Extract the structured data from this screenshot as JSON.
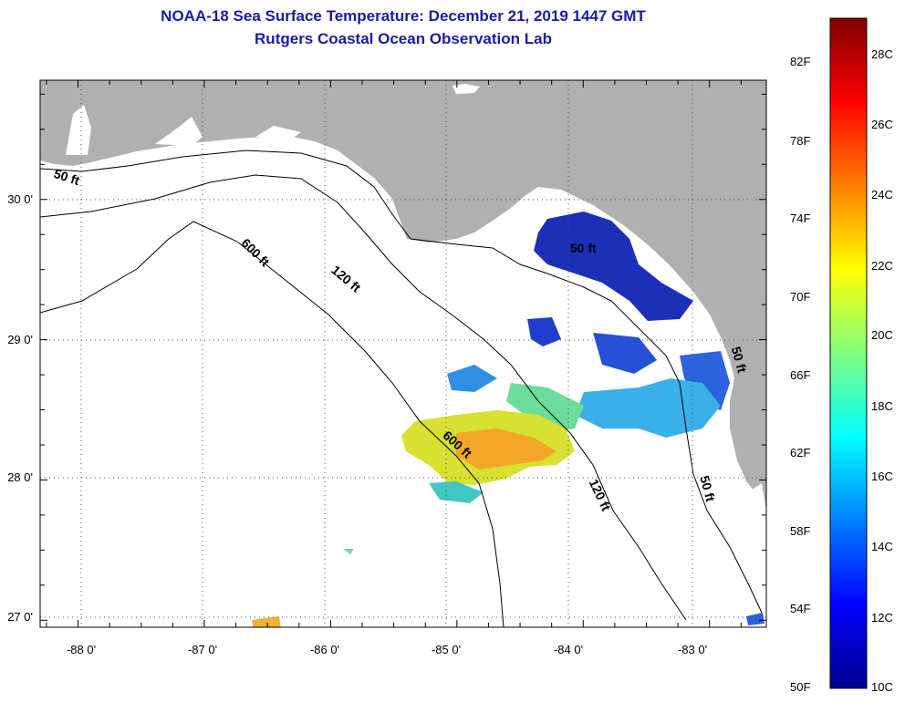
{
  "title": {
    "line1": "NOAA-18 Sea Surface Temperature:  December 21, 2019 1447 GMT",
    "line2": "Rutgers Coastal Ocean Observation Lab"
  },
  "map": {
    "extent": {
      "lon": [
        -88.3,
        -82.55
      ],
      "lat": [
        26.95,
        30.85
      ]
    },
    "lat_ticks": [
      {
        "label": "30 0'",
        "value": 30
      },
      {
        "label": "29 0'",
        "value": 29
      },
      {
        "label": "28 0'",
        "value": 28
      },
      {
        "label": "27 0'",
        "value": 27
      }
    ],
    "lon_ticks": [
      {
        "label": "-88 0'",
        "value": -88
      },
      {
        "label": "-87 0'",
        "value": -87
      },
      {
        "label": "-86 0'",
        "value": -86
      },
      {
        "label": "-85 0'",
        "value": -85
      },
      {
        "label": "-84 0'",
        "value": -84
      },
      {
        "label": "-83 0'",
        "value": -83
      }
    ],
    "contour_labels": [
      {
        "text": "50 ft",
        "lon": -88.1,
        "lat": 30.13,
        "rotate": 18
      },
      {
        "text": "600 ft",
        "lon": -86.62,
        "lat": 29.6,
        "rotate": 45
      },
      {
        "text": "120 ft",
        "lon": -85.9,
        "lat": 29.41,
        "rotate": 40
      },
      {
        "text": "600 ft",
        "lon": -85.02,
        "lat": 28.23,
        "rotate": 42
      },
      {
        "text": "120 ft",
        "lon": -83.9,
        "lat": 27.88,
        "rotate": 65
      },
      {
        "text": "50 ft",
        "lon": -83.05,
        "lat": 27.93,
        "rotate": 75
      },
      {
        "text": "50 ft",
        "lon": -84.0,
        "lat": 29.62,
        "rotate": 0
      },
      {
        "text": "50 ft",
        "lon": -82.8,
        "lat": 28.85,
        "rotate": 75
      }
    ],
    "colors": {
      "land": "#b0b0b0",
      "ocean": "#ffffff",
      "contour": "#000000"
    }
  },
  "colorbar": {
    "fahrenheit": [
      "82F",
      "78F",
      "74F",
      "70F",
      "66F",
      "62F",
      "58F",
      "54F",
      "50F"
    ],
    "celsius": [
      "28C",
      "26C",
      "24C",
      "22C",
      "20C",
      "18C",
      "16C",
      "14C",
      "12C",
      "10C"
    ],
    "colormap": "jet",
    "range_c": [
      10,
      29.5
    ]
  }
}
